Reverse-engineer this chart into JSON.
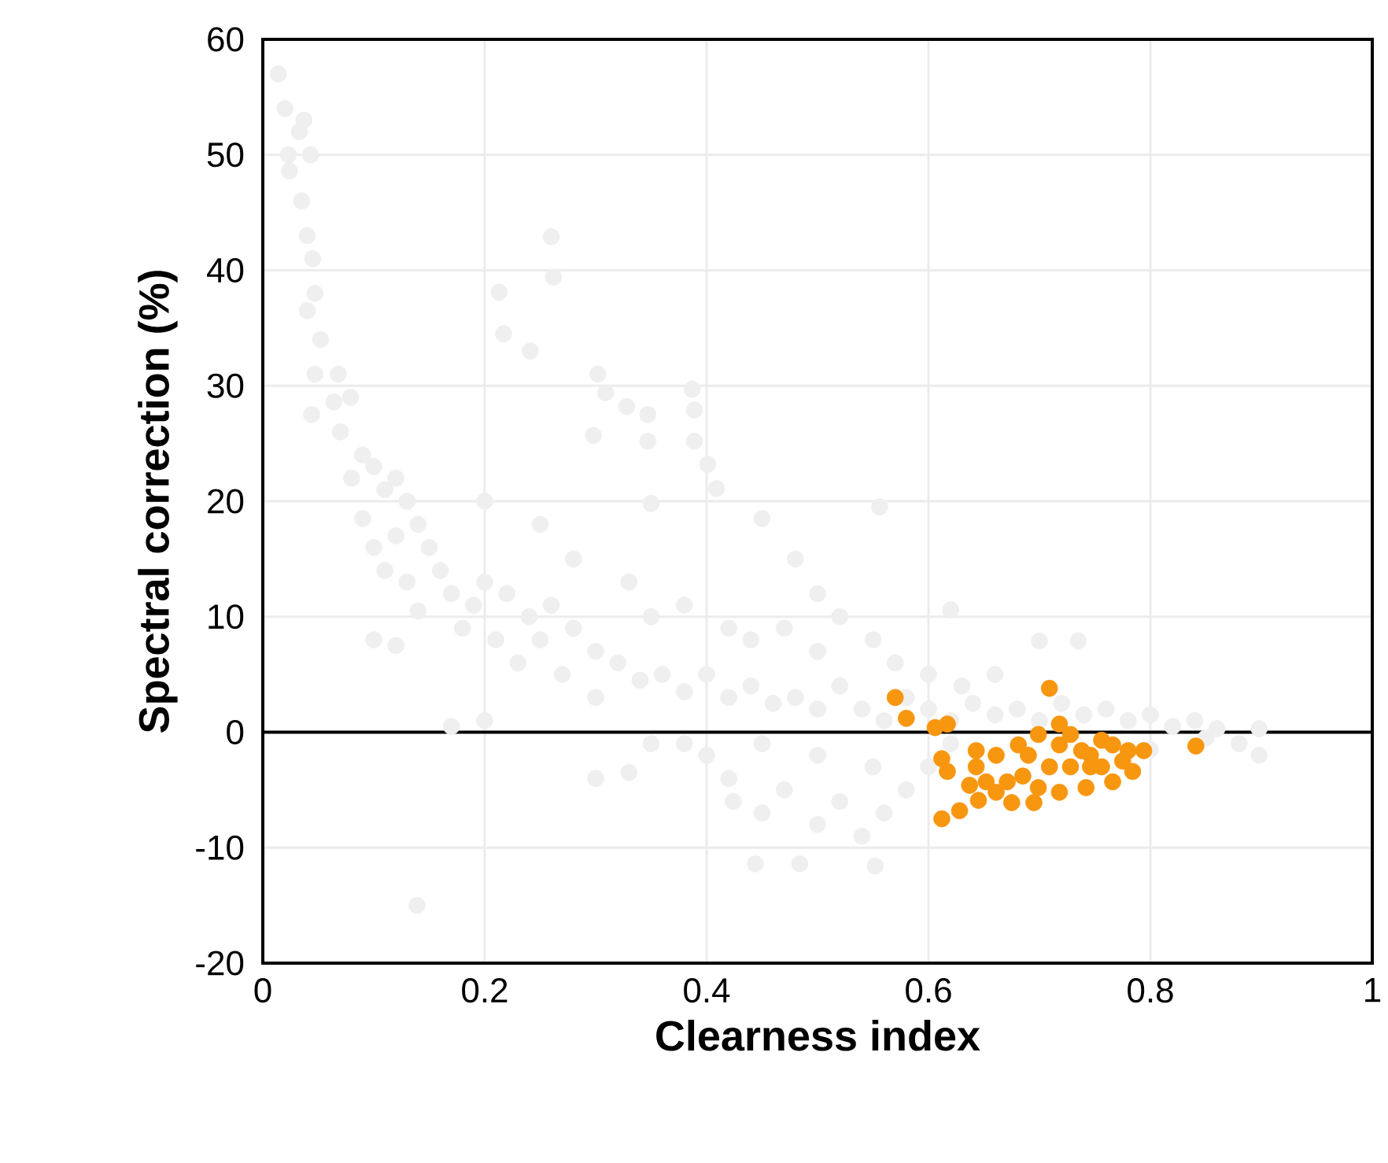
{
  "chart_data": {
    "type": "scatter",
    "xlabel": "Clearness index",
    "ylabel": "Spectral correction (%)",
    "xlim": [
      0,
      1
    ],
    "ylim": [
      -20,
      60
    ],
    "xticks": [
      0,
      0.2,
      0.4,
      0.6,
      0.8,
      1
    ],
    "yticks": [
      -20,
      -10,
      0,
      10,
      20,
      30,
      40,
      50,
      60
    ],
    "grid": true,
    "marker": "circle",
    "ref_lines": [
      {
        "axis": "y",
        "value": 0,
        "color": "#000000"
      }
    ],
    "series": [
      {
        "color": "#efefef",
        "x": [
          0.014,
          0.02,
          0.037,
          0.033,
          0.023,
          0.043,
          0.024,
          0.035,
          0.04,
          0.045,
          0.047,
          0.04,
          0.052,
          0.047,
          0.068,
          0.064,
          0.044,
          0.079,
          0.07,
          0.09,
          0.08,
          0.1,
          0.11,
          0.12,
          0.13,
          0.09,
          0.1,
          0.12,
          0.14,
          0.15,
          0.11,
          0.13,
          0.16,
          0.17,
          0.14,
          0.1,
          0.12,
          0.18,
          0.19,
          0.2,
          0.22,
          0.24,
          0.21,
          0.23,
          0.25,
          0.26,
          0.28,
          0.3,
          0.27,
          0.32,
          0.34,
          0.3,
          0.36,
          0.38,
          0.4,
          0.42,
          0.44,
          0.46,
          0.48,
          0.5,
          0.52,
          0.54,
          0.56,
          0.58,
          0.6,
          0.62,
          0.64,
          0.66,
          0.68,
          0.7,
          0.72,
          0.74,
          0.76,
          0.78,
          0.8,
          0.82,
          0.84,
          0.86,
          0.898,
          0.898,
          0.2,
          0.25,
          0.28,
          0.33,
          0.35,
          0.38,
          0.42,
          0.44,
          0.47,
          0.5,
          0.52,
          0.55,
          0.57,
          0.6,
          0.63,
          0.66,
          0.62,
          0.7,
          0.735,
          0.45,
          0.48,
          0.5,
          0.26,
          0.262,
          0.213,
          0.217,
          0.241,
          0.302,
          0.309,
          0.328,
          0.347,
          0.298,
          0.347,
          0.387,
          0.389,
          0.389,
          0.401,
          0.409,
          0.35,
          0.556,
          0.3,
          0.33,
          0.38,
          0.4,
          0.42,
          0.424,
          0.45,
          0.47,
          0.5,
          0.52,
          0.54,
          0.56,
          0.58,
          0.6,
          0.62,
          0.55,
          0.5,
          0.45,
          0.444,
          0.484,
          0.552,
          0.139,
          0.35,
          0.2,
          0.17,
          0.8,
          0.85,
          0.88
        ],
        "values": [
          57,
          54,
          53,
          52,
          50,
          50,
          48.6,
          46,
          43,
          41,
          38,
          36.5,
          34,
          31,
          31,
          28.6,
          27.5,
          29,
          26,
          24,
          22,
          23,
          21,
          22,
          20,
          18.5,
          16,
          17,
          18,
          16,
          14,
          13,
          14,
          12,
          10.5,
          8,
          7.5,
          9,
          11,
          13,
          12,
          10,
          8,
          6,
          8,
          11,
          9,
          7,
          5,
          6,
          4.5,
          3,
          5,
          3.5,
          5,
          3,
          4,
          2.5,
          3,
          2,
          4,
          2,
          1,
          3,
          2,
          1,
          2.5,
          1.5,
          2,
          1,
          2.5,
          1.5,
          2,
          1,
          1.5,
          0.5,
          1,
          0.3,
          0.3,
          -2,
          20,
          18,
          15,
          13,
          10,
          11,
          9,
          8,
          9,
          7,
          10,
          8,
          6,
          5,
          4,
          5,
          10.6,
          7.9,
          7.9,
          18.5,
          15,
          12,
          42.9,
          39.4,
          38.1,
          34.5,
          33,
          31,
          29.4,
          28.2,
          27.5,
          25.7,
          25.2,
          29.7,
          27.9,
          25.2,
          23.2,
          21.1,
          19.8,
          19.5,
          -4,
          -3.5,
          -1,
          -2,
          -4,
          -6,
          -7,
          -5,
          -8,
          -6,
          -9,
          -7,
          -5,
          -3,
          -1,
          -3,
          -2,
          -1,
          -11.4,
          -11.4,
          -11.6,
          -15,
          -1,
          1,
          0.5,
          -1.5,
          -0.5,
          -1
        ]
      },
      {
        "color": "#f7960f",
        "x": [
          0.57,
          0.58,
          0.606,
          0.617,
          0.612,
          0.617,
          0.612,
          0.628,
          0.645,
          0.661,
          0.675,
          0.695,
          0.643,
          0.643,
          0.661,
          0.681,
          0.699,
          0.709,
          0.718,
          0.728,
          0.738,
          0.746,
          0.756,
          0.766,
          0.78,
          0.794,
          0.784,
          0.766,
          0.742,
          0.718,
          0.699,
          0.685,
          0.671,
          0.709,
          0.728,
          0.746,
          0.718,
          0.69,
          0.756,
          0.775,
          0.841,
          0.652,
          0.637
        ],
        "values": [
          3.0,
          1.2,
          0.4,
          0.7,
          -2.3,
          -3.4,
          -7.5,
          -6.8,
          -5.9,
          -5.2,
          -6.1,
          -6.1,
          -1.6,
          -3.0,
          -2.0,
          -1.1,
          -0.2,
          3.8,
          0.7,
          -0.2,
          -1.6,
          -3.0,
          -0.7,
          -1.1,
          -1.6,
          -1.6,
          -3.4,
          -4.3,
          -4.8,
          -5.2,
          -4.8,
          -3.8,
          -4.3,
          -3.0,
          -3.0,
          -2.0,
          -1.1,
          -2.0,
          -3.0,
          -2.5,
          -1.2,
          -4.3,
          -4.6
        ]
      }
    ]
  }
}
